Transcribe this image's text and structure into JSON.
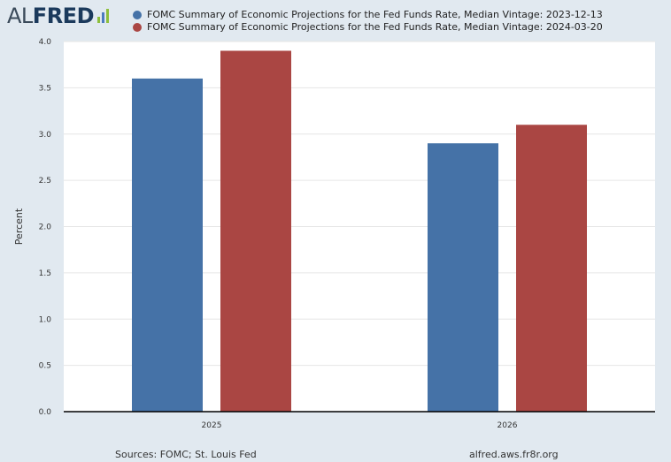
{
  "header": {
    "logo_prefix": "AL",
    "logo_main": "FRED",
    "logo_mark_colors": [
      "#8dbf3c",
      "#4b7bbf",
      "#8dbf3c"
    ]
  },
  "footer": {
    "source": "Sources: FOMC; St. Louis Fed",
    "url": "alfred.aws.fr8r.org"
  },
  "chart_data": {
    "type": "bar",
    "categories": [
      "2025",
      "2026"
    ],
    "series": [
      {
        "name": "FOMC Summary of Economic Projections for the Fed Funds Rate, Median Vintage: 2023-12-13",
        "color": "#4572a7",
        "values": [
          3.6,
          2.9
        ]
      },
      {
        "name": "FOMC Summary of Economic Projections for the Fed Funds Rate, Median Vintage: 2024-03-20",
        "color": "#aa4643",
        "values": [
          3.9,
          3.1
        ]
      }
    ],
    "xlabel": "",
    "ylabel": "Percent",
    "ylim": [
      0,
      4.0
    ],
    "yticks": [
      "0.0",
      "0.5",
      "1.0",
      "1.5",
      "2.0",
      "2.5",
      "3.0",
      "3.5",
      "4.0"
    ],
    "grid": true,
    "legend_position": "top"
  }
}
